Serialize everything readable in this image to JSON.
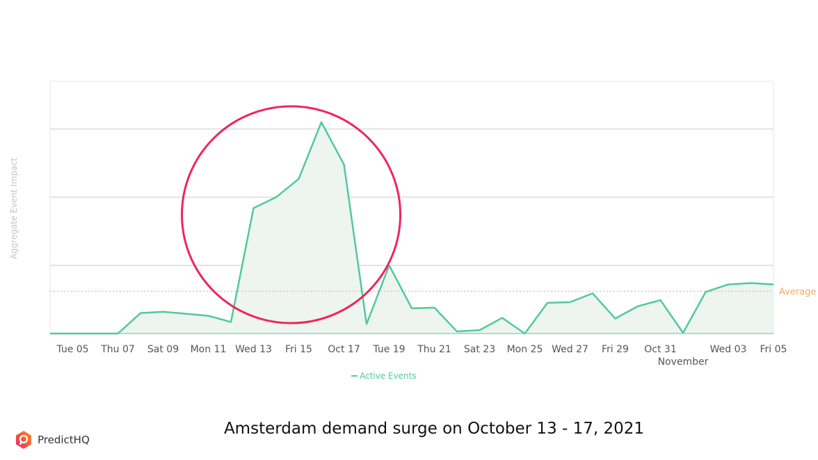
{
  "chart_data": {
    "type": "area",
    "ylabel": "Aggregate Event Impact",
    "xlabel": "",
    "x": [
      "2021-10-04",
      "2021-10-05",
      "2021-10-06",
      "2021-10-07",
      "2021-10-08",
      "2021-10-09",
      "2021-10-10",
      "2021-10-11",
      "2021-10-12",
      "2021-10-13",
      "2021-10-14",
      "2021-10-15",
      "2021-10-16",
      "2021-10-17",
      "2021-10-18",
      "2021-10-19",
      "2021-10-20",
      "2021-10-21",
      "2021-10-22",
      "2021-10-23",
      "2021-10-24",
      "2021-10-25",
      "2021-10-26",
      "2021-10-27",
      "2021-10-28",
      "2021-10-29",
      "2021-10-30",
      "2021-10-31",
      "2021-11-01",
      "2021-11-02",
      "2021-11-03",
      "2021-11-04",
      "2021-11-05"
    ],
    "series": [
      {
        "name": "Active Events",
        "color": "#4fc9a0",
        "values": [
          0,
          0,
          0,
          0,
          0.3,
          0.32,
          0.29,
          0.26,
          0.17,
          1.84,
          2.0,
          2.27,
          3.1,
          2.48,
          0.14,
          1.0,
          0.37,
          0.38,
          0.03,
          0.05,
          0.23,
          0,
          0.45,
          0.46,
          0.59,
          0.22,
          0.4,
          0.49,
          0.01,
          0.61,
          0.72,
          0.74,
          0.72
        ]
      }
    ],
    "average": {
      "label": "Average",
      "value": 0.62,
      "color": "#f5a962"
    },
    "ylim": [
      0,
      3.7
    ],
    "grid": true,
    "tick_labels": [
      {
        "date": "2021-10-05",
        "label": "Tue 05"
      },
      {
        "date": "2021-10-07",
        "label": "Thu 07"
      },
      {
        "date": "2021-10-09",
        "label": "Sat 09"
      },
      {
        "date": "2021-10-11",
        "label": "Mon 11"
      },
      {
        "date": "2021-10-13",
        "label": "Wed 13"
      },
      {
        "date": "2021-10-15",
        "label": "Fri 15"
      },
      {
        "date": "2021-10-17",
        "label": "Oct 17"
      },
      {
        "date": "2021-10-19",
        "label": "Tue 19"
      },
      {
        "date": "2021-10-21",
        "label": "Thu 21"
      },
      {
        "date": "2021-10-23",
        "label": "Sat 23"
      },
      {
        "date": "2021-10-25",
        "label": "Mon 25"
      },
      {
        "date": "2021-10-27",
        "label": "Wed 27"
      },
      {
        "date": "2021-10-29",
        "label": "Fri 29"
      },
      {
        "date": "2021-10-31",
        "label": "Oct 31"
      },
      {
        "date": "2021-11-01",
        "label": "November"
      },
      {
        "date": "2021-11-03",
        "label": "Wed 03"
      },
      {
        "date": "2021-11-05",
        "label": "Fri 05"
      }
    ],
    "legend": {
      "position": "bottom",
      "label": "Active Events"
    },
    "annotation": {
      "type": "circle",
      "color": "#f0255a",
      "range": [
        "2021-10-13",
        "2021-10-17"
      ]
    }
  },
  "caption": "Amsterdam demand surge on October 13 - 17, 2021",
  "brand": {
    "name": "PredictHQ",
    "color": "#f25c3a"
  }
}
